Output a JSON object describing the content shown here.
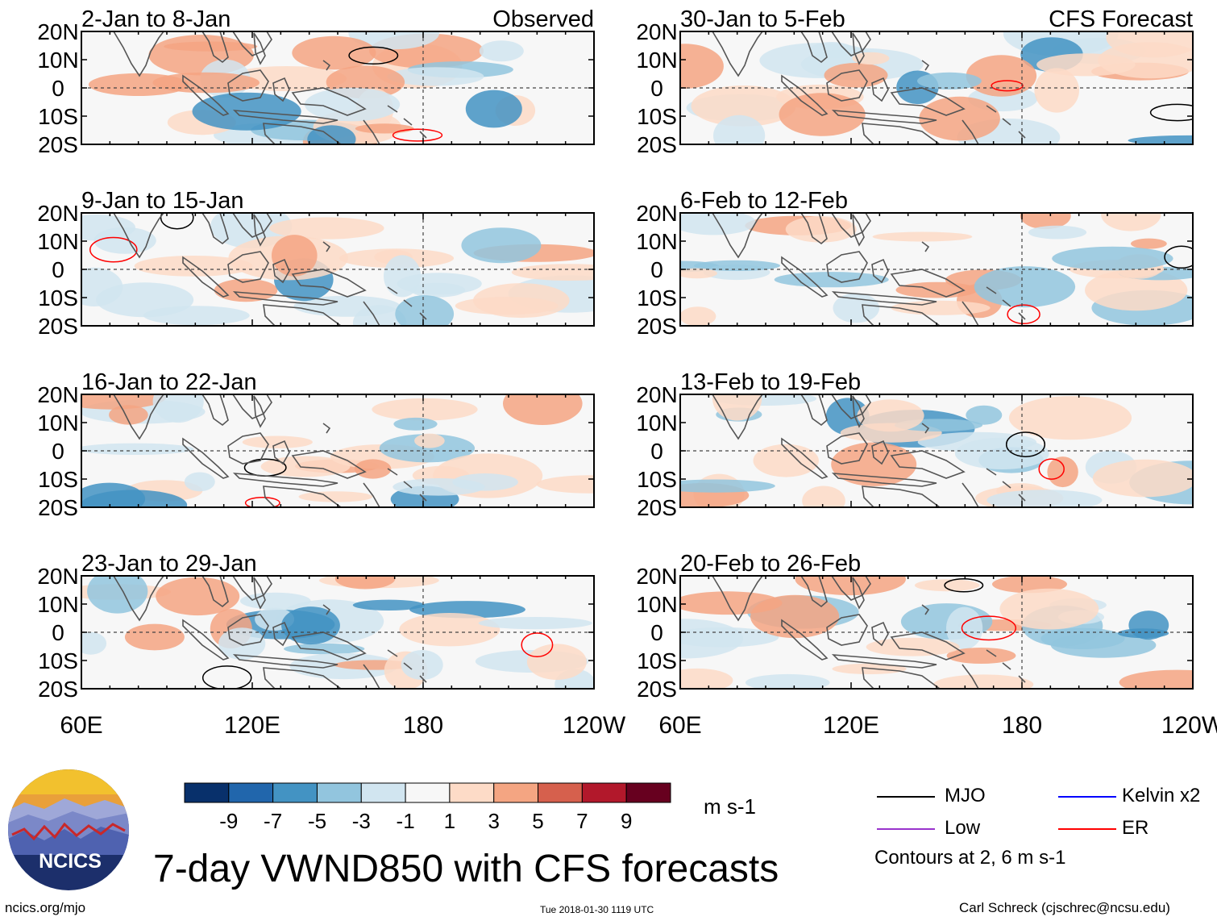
{
  "chart_data": {
    "type": "heatmap",
    "title": "7-day VWND850 with CFS forecasts",
    "variable": "VWND850",
    "units": "m s-1",
    "panel_tags": {
      "observed": "Observed",
      "forecast": "CFS Forecast"
    },
    "panels_observed": [
      {
        "period": "2-Jan to 8-Jan",
        "tag": "Observed"
      },
      {
        "period": "9-Jan to 15-Jan"
      },
      {
        "period": "16-Jan to 22-Jan"
      },
      {
        "period": "23-Jan to 29-Jan"
      }
    ],
    "panels_forecast": [
      {
        "period": "30-Jan to 5-Feb",
        "tag": "CFS Forecast"
      },
      {
        "period": "6-Feb to 12-Feb"
      },
      {
        "period": "13-Feb to 19-Feb"
      },
      {
        "period": "20-Feb to 26-Feb"
      }
    ],
    "lat_labels": [
      "20N",
      "10N",
      "0",
      "10S",
      "20S"
    ],
    "lat_values": [
      20,
      10,
      0,
      -10,
      -20
    ],
    "lon_labels": [
      "60E",
      "120E",
      "180",
      "120W"
    ],
    "lon_values": [
      60,
      120,
      180,
      240
    ],
    "lon_range": [
      60,
      240
    ],
    "lat_range": [
      -20,
      20
    ],
    "colorbar": {
      "ticks": [
        "-9",
        "-7",
        "-5",
        "-3",
        "-1",
        "1",
        "3",
        "5",
        "7",
        "9"
      ],
      "colors": [
        "#08306b",
        "#2166ac",
        "#4393c3",
        "#92c5de",
        "#d1e5f0",
        "#f7f7f7",
        "#fddbc7",
        "#f4a582",
        "#d6604d",
        "#b2182b",
        "#67001f"
      ]
    },
    "legend": [
      {
        "label": "MJO",
        "color": "#000000"
      },
      {
        "label": "Kelvin x2",
        "color": "#0000ff"
      },
      {
        "label": "Low",
        "color": "#9933cc"
      },
      {
        "label": "ER",
        "color": "#ff0000"
      }
    ],
    "contour_note": "Contours at 2, 6 m s-1"
  },
  "branding": {
    "logo_text": "NCICS",
    "site": "ncics.org/mjo"
  },
  "timestamp": "Tue 2018-01-30 1119 UTC",
  "credit": "Carl Schreck (cjschrec@ncsu.edu)"
}
